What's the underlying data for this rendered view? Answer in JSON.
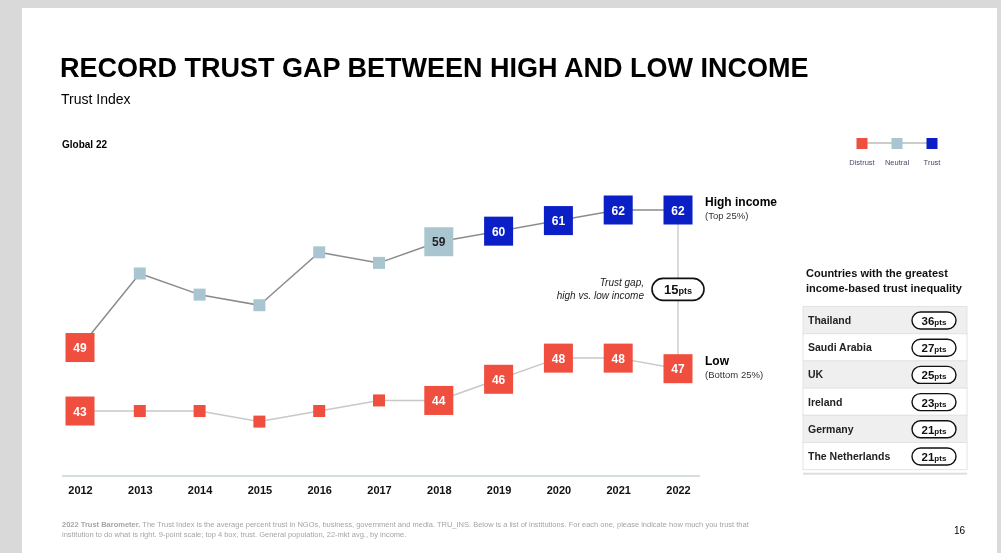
{
  "chart_data": [
    {
      "type": "line",
      "title": "RECORD TRUST GAP BETWEEN HIGH AND LOW INCOME",
      "subtitle": "Trust Index",
      "categories": [
        "2012",
        "2013",
        "2014",
        "2015",
        "2016",
        "2017",
        "2018",
        "2019",
        "2020",
        "2021",
        "2022"
      ],
      "series": [
        {
          "name": "High income",
          "color": "#8c8c8c",
          "values": [
            49,
            56,
            54,
            53,
            58,
            57,
            59,
            60,
            61,
            62,
            62
          ],
          "value_labels": [
            "49",
            null,
            null,
            null,
            null,
            null,
            "59",
            "60",
            "61",
            "62",
            "62"
          ],
          "colors": [
            "#f04e3e",
            "#a9c6d0",
            "#a9c6d0",
            "#a9c6d0",
            "#a9c6d0",
            "#a9c6d0",
            "#a9c6d0",
            "#0b1fc6",
            "#0b1fc6",
            "#0b1fc6",
            "#0b1fc6"
          ]
        },
        {
          "name": "Low",
          "color": "#c8c8c8",
          "values": [
            43,
            43,
            43,
            42,
            43,
            44,
            44,
            46,
            48,
            48,
            47
          ],
          "value_labels": [
            "43",
            null,
            null,
            null,
            null,
            null,
            "44",
            "46",
            "48",
            "48",
            "47"
          ],
          "colors": [
            "#f04e3e",
            "#f04e3e",
            "#f04e3e",
            "#f04e3e",
            "#f04e3e",
            "#f04e3e",
            "#f04e3e",
            "#f04e3e",
            "#f04e3e",
            "#f04e3e",
            "#f04e3e"
          ]
        }
      ],
      "tick_labels": "x",
      "marker": "square",
      "line_style": "solid",
      "grid": false,
      "legend": "top right",
      "annotations": [
        "Global 22",
        "Distrust",
        "Neutral",
        "Trust",
        {
          "text": "(Top 25%)",
          "x": "2022",
          "y": 62
        },
        {
          "text": "(Bottom 25%)",
          "x": "2022",
          "y": 47
        },
        "Trust gap, high vs. low income",
        "15pts",
        "2022 Trust Barometer. The Trust Index is the average percent trust in NGOs, business, government and media. TRU_INS. Below is a list of institutions. For each one, please indicate how much you trust that institution to do what is right. 9-point scale; top 4 box, trust. General population, 22-mkt avg., by income.",
        "16"
      ]
    },
    {
      "type": "other",
      "title": "Countries with the greatest income-based trust inequality",
      "categories": [
        "Thailand",
        "Saudi Arabia",
        "UK",
        "Ireland",
        "Germany",
        "The Netherlands"
      ],
      "values": [
        36,
        27,
        25,
        23,
        21,
        21
      ],
      "value_labels": [
        "36pts",
        "27pts",
        "25pts",
        "23pts",
        "21pts",
        "21pts"
      ]
    }
  ]
}
